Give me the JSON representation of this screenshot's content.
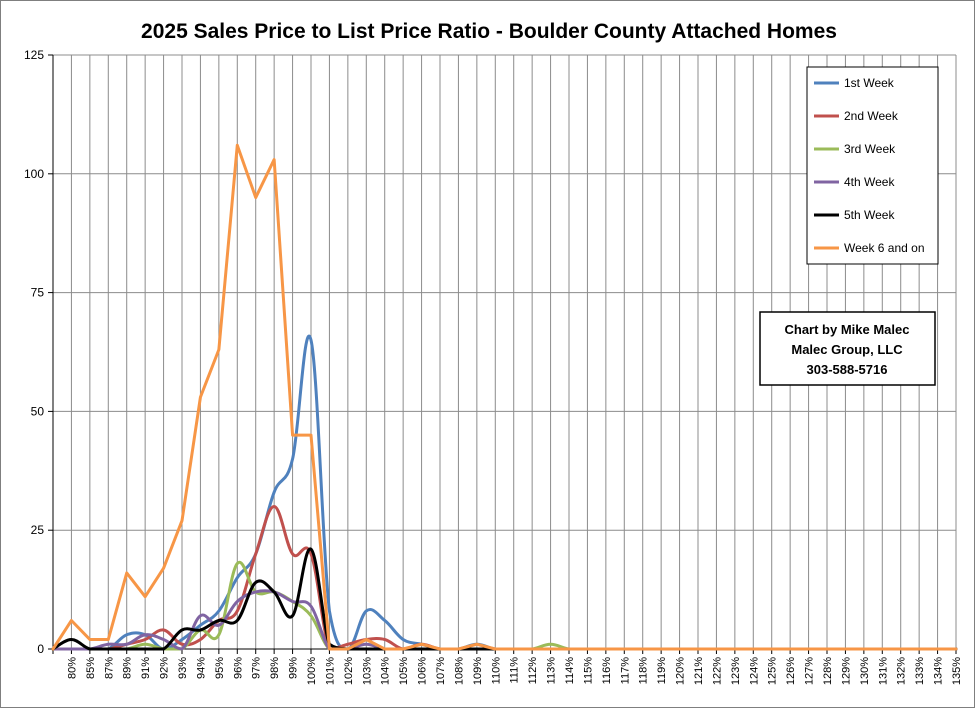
{
  "chart_data": {
    "type": "line",
    "title": "2025 Sales Price to List Price Ratio - Boulder County Attached Homes",
    "xlabel": "",
    "ylabel": "",
    "ylim": [
      0,
      125
    ],
    "yticks": [
      0,
      25,
      50,
      75,
      100,
      125
    ],
    "grid": true,
    "legend_position": "top-right",
    "categories": [
      "",
      "80%",
      "85%",
      "87%",
      "89%",
      "91%",
      "92%",
      "93%",
      "94%",
      "95%",
      "96%",
      "97%",
      "98%",
      "99%",
      "100%",
      "101%",
      "102%",
      "103%",
      "104%",
      "105%",
      "106%",
      "107%",
      "108%",
      "109%",
      "110%",
      "111%",
      "112%",
      "113%",
      "114%",
      "115%",
      "116%",
      "117%",
      "118%",
      "119%",
      "120%",
      "121%",
      "122%",
      "123%",
      "124%",
      "125%",
      "126%",
      "127%",
      "128%",
      "129%",
      "130%",
      "131%",
      "132%",
      "133%",
      "134%",
      "135%"
    ],
    "series": [
      {
        "name": "1st Week",
        "color": "#4f81bd",
        "width": 3,
        "values": [
          0,
          0,
          0,
          0,
          3,
          3,
          0,
          2,
          5,
          8,
          15,
          20,
          33,
          40,
          65,
          8,
          0,
          8,
          6,
          2,
          1,
          0,
          0,
          1,
          0,
          0,
          0,
          0,
          0,
          0,
          0,
          0,
          0,
          0,
          0,
          0,
          0,
          0,
          0,
          0,
          0,
          0,
          0,
          0,
          0,
          0,
          0,
          0,
          0,
          0
        ]
      },
      {
        "name": "2nd Week",
        "color": "#c0504d",
        "width": 3,
        "values": [
          0,
          0,
          0,
          0,
          1,
          2,
          4,
          1,
          2,
          6,
          8,
          20,
          30,
          20,
          20,
          0,
          1,
          2,
          2,
          0,
          1,
          0,
          0,
          0,
          0,
          0,
          0,
          0,
          0,
          0,
          0,
          0,
          0,
          0,
          0,
          0,
          0,
          0,
          0,
          0,
          0,
          0,
          0,
          0,
          0,
          0,
          0,
          0,
          0,
          0
        ]
      },
      {
        "name": "3rd Week",
        "color": "#9bbb59",
        "width": 3,
        "values": [
          0,
          0,
          0,
          0,
          0,
          1,
          0,
          0,
          4,
          3,
          18,
          12,
          12,
          10,
          7,
          0,
          0,
          0,
          0,
          0,
          0,
          0,
          0,
          0,
          0,
          0,
          0,
          1,
          0,
          0,
          0,
          0,
          0,
          0,
          0,
          0,
          0,
          0,
          0,
          0,
          0,
          0,
          0,
          0,
          0,
          0,
          0,
          0,
          0,
          0
        ]
      },
      {
        "name": "4th Week",
        "color": "#8064a2",
        "width": 3,
        "values": [
          0,
          0,
          0,
          1,
          1,
          3,
          2,
          0,
          7,
          5,
          10,
          12,
          12,
          10,
          9,
          0,
          0,
          1,
          0,
          0,
          0,
          0,
          0,
          0,
          0,
          0,
          0,
          0,
          0,
          0,
          0,
          0,
          0,
          0,
          0,
          0,
          0,
          0,
          0,
          0,
          0,
          0,
          0,
          0,
          0,
          0,
          0,
          0,
          0,
          0
        ]
      },
      {
        "name": "5th Week",
        "color": "#000000",
        "width": 3,
        "values": [
          0,
          2,
          0,
          0,
          0,
          0,
          0,
          4,
          4,
          6,
          6,
          14,
          12,
          7,
          21,
          1,
          0,
          0,
          0,
          0,
          0,
          0,
          0,
          0,
          0,
          0,
          0,
          0,
          0,
          0,
          0,
          0,
          0,
          0,
          0,
          0,
          0,
          0,
          0,
          0,
          0,
          0,
          0,
          0,
          0,
          0,
          0,
          0,
          0,
          0
        ]
      },
      {
        "name": "Week 6 and on",
        "color": "#f79646",
        "width": 3,
        "straight": true,
        "values": [
          0,
          6,
          2,
          2,
          16,
          11,
          17,
          27,
          53,
          63,
          106,
          95,
          103,
          45,
          45,
          0,
          0,
          2,
          0,
          0,
          1,
          0,
          0,
          1,
          0,
          0,
          0,
          0,
          0,
          0,
          0,
          0,
          0,
          0,
          0,
          0,
          0,
          0,
          0,
          0,
          0,
          0,
          0,
          0,
          0,
          0,
          0,
          0,
          0,
          0
        ]
      }
    ]
  },
  "credit": {
    "line1": "Chart by Mike Malec",
    "line2": "Malec Group, LLC",
    "line3": "303-588-5716"
  }
}
